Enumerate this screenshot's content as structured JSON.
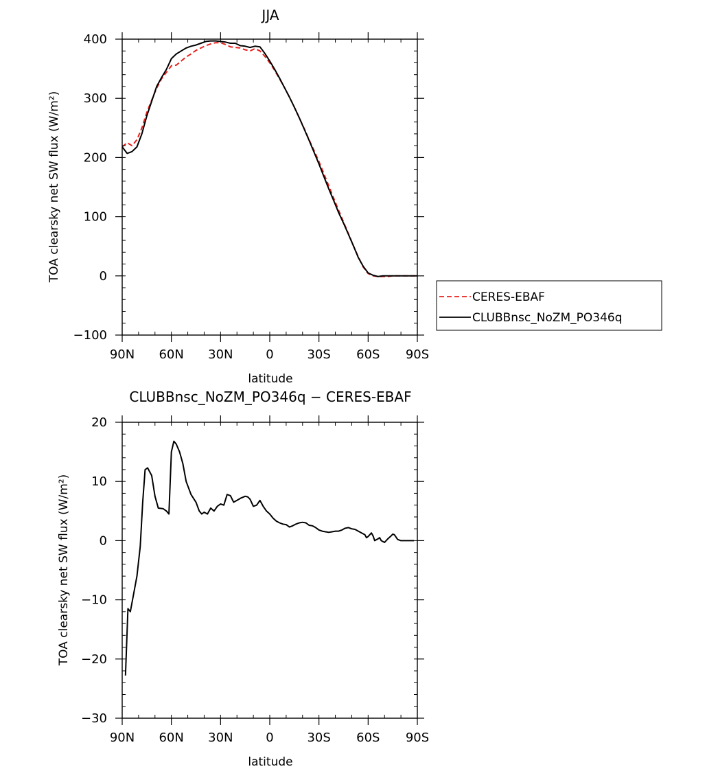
{
  "chart_data": [
    {
      "type": "line",
      "title": "JJA",
      "xlabel": "latitude",
      "ylabel": "TOA clearsky net SW flux (W/m²)",
      "ylim": [
        -100,
        400
      ],
      "xlim": [
        90,
        -90
      ],
      "x_tick_values": [
        90,
        60,
        30,
        0,
        -30,
        -60,
        -90
      ],
      "x_tick_labels": [
        "90N",
        "60N",
        "30N",
        "0",
        "30S",
        "60S",
        "90S"
      ],
      "y_tick_values": [
        -100,
        0,
        100,
        200,
        300,
        400
      ],
      "y_tick_labels": [
        "−100",
        "0",
        "100",
        "200",
        "300",
        "400"
      ],
      "legend_position": "right",
      "series": [
        {
          "name": "CERES-EBAF",
          "color": "#e8201c",
          "dash": "dashed",
          "x": [
            90,
            87,
            84,
            81,
            78,
            75,
            72,
            69,
            66,
            63,
            60,
            57,
            54,
            51,
            48,
            45,
            42,
            39,
            36,
            33,
            30,
            27,
            24,
            21,
            18,
            15,
            12,
            9,
            6,
            3,
            0,
            -3,
            -6,
            -9,
            -12,
            -15,
            -18,
            -21,
            -24,
            -27,
            -30,
            -33,
            -36,
            -39,
            -42,
            -45,
            -48,
            -51,
            -54,
            -57,
            -60,
            -63,
            -66,
            -69,
            -72,
            -75,
            -78,
            -81,
            -84,
            -87,
            -90
          ],
          "y": [
            218,
            225,
            220,
            230,
            250,
            276,
            297,
            317,
            333,
            344,
            355,
            356,
            363,
            370,
            375,
            381,
            385,
            389,
            392,
            394,
            394,
            391,
            387,
            386,
            385,
            382,
            380,
            384,
            380,
            371,
            360,
            347,
            333,
            318,
            302,
            285,
            267,
            249,
            230,
            212,
            193,
            173,
            152,
            131,
            111,
            91,
            71,
            51,
            32,
            15,
            4,
            0,
            -1,
            -1,
            -1,
            0,
            0,
            0,
            0,
            0,
            0
          ]
        },
        {
          "name": "CLUBBnsc_NoZM_PO346q",
          "color": "#000000",
          "dash": "solid",
          "x": [
            90,
            87,
            84,
            81,
            78,
            75,
            72,
            69,
            66,
            63,
            60,
            57,
            54,
            51,
            48,
            45,
            42,
            39,
            36,
            33,
            30,
            27,
            24,
            21,
            18,
            15,
            12,
            9,
            6,
            3,
            0,
            -3,
            -6,
            -9,
            -12,
            -15,
            -18,
            -21,
            -24,
            -27,
            -30,
            -33,
            -36,
            -39,
            -42,
            -45,
            -48,
            -51,
            -54,
            -57,
            -60,
            -63,
            -66,
            -69,
            -72,
            -75,
            -78,
            -81,
            -84,
            -87,
            -90
          ],
          "y": [
            218,
            207,
            210,
            218,
            240,
            270,
            295,
            320,
            335,
            349,
            367,
            375,
            380,
            385,
            388,
            390,
            393,
            396,
            397,
            397,
            396,
            395,
            393,
            393,
            389,
            388,
            386,
            388,
            387,
            376,
            363,
            349,
            334,
            318,
            302,
            285,
            267,
            248,
            229,
            209,
            189,
            168,
            147,
            127,
            107,
            89,
            70,
            51,
            31,
            16,
            5,
            1,
            -1,
            0,
            0,
            0,
            0,
            0,
            0,
            0,
            0
          ]
        }
      ]
    },
    {
      "type": "line",
      "title": "CLUBBnsc_NoZM_PO346q − CERES-EBAF",
      "xlabel": "latitude",
      "ylabel": "TOA clearsky net SW flux (W/m²)",
      "ylim": [
        -30,
        20
      ],
      "xlim": [
        90,
        -90
      ],
      "x_tick_values": [
        90,
        60,
        30,
        0,
        -30,
        -60,
        -90
      ],
      "x_tick_labels": [
        "90N",
        "60N",
        "30N",
        "0",
        "30S",
        "60S",
        "90S"
      ],
      "y_tick_values": [
        -30,
        -20,
        -10,
        0,
        10,
        20
      ],
      "y_tick_labels": [
        "−30",
        "−20",
        "−10",
        "0",
        "10",
        "20"
      ],
      "series": [
        {
          "color": "#000000",
          "dash": "solid",
          "x": [
            88,
            86.5,
            85,
            83,
            81,
            79,
            77.5,
            76,
            74.5,
            72,
            70,
            68,
            65,
            63,
            61.5,
            60,
            58.5,
            57,
            55,
            53,
            51,
            48,
            45,
            43,
            41.5,
            40,
            38,
            36,
            34,
            32,
            30,
            28,
            26,
            24,
            22,
            20,
            17.5,
            15,
            13.5,
            12,
            10,
            8,
            6,
            4,
            2,
            0,
            -2,
            -4,
            -6,
            -8,
            -10,
            -12,
            -14,
            -16,
            -18,
            -20,
            -22,
            -24,
            -26,
            -28,
            -30,
            -32,
            -34,
            -36,
            -38,
            -40,
            -42,
            -44,
            -46,
            -48,
            -50,
            -52,
            -54,
            -56,
            -58,
            -59,
            -60,
            -62,
            -63,
            -64,
            -66,
            -67,
            -68,
            -70,
            -72,
            -74,
            -75,
            -76,
            -78,
            -80,
            -82,
            -84,
            -86,
            -88
          ],
          "y": [
            -22.8,
            -11.5,
            -12.0,
            -9.0,
            -6.0,
            -1.0,
            6.5,
            12.0,
            12.3,
            11.0,
            7.5,
            5.5,
            5.4,
            5.0,
            4.5,
            15.0,
            16.8,
            16.3,
            15.0,
            13.0,
            10.0,
            7.8,
            6.5,
            5.0,
            4.5,
            4.8,
            4.5,
            5.5,
            5.0,
            5.8,
            6.2,
            6.0,
            7.8,
            7.6,
            6.5,
            6.8,
            7.2,
            7.5,
            7.4,
            7.0,
            5.8,
            6.0,
            6.8,
            5.8,
            5.0,
            4.5,
            3.8,
            3.3,
            3.0,
            2.8,
            2.7,
            2.3,
            2.5,
            2.8,
            3.0,
            3.1,
            3.0,
            2.6,
            2.5,
            2.2,
            1.8,
            1.6,
            1.5,
            1.4,
            1.5,
            1.6,
            1.6,
            1.8,
            2.1,
            2.2,
            2.0,
            1.9,
            1.6,
            1.3,
            1.0,
            0.5,
            0.7,
            1.3,
            0.8,
            0.0,
            0.3,
            0.5,
            0.0,
            -0.3,
            0.3,
            0.8,
            1.1,
            1.0,
            0.2,
            0.0,
            0.0,
            0.0,
            0.0,
            0.0
          ]
        }
      ]
    }
  ]
}
